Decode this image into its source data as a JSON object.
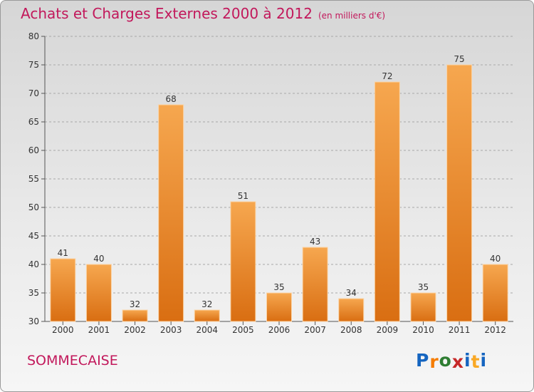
{
  "title": "Achats et Charges Externes 2000 à 2012",
  "subtitle": "(en milliers d'€)",
  "commune": "SOMMECAISE",
  "logo": {
    "text": "Proxiti",
    "colors": [
      "#1565c0",
      "#f57c00",
      "#2e7d32",
      "#c62828",
      "#1565c0",
      "#f9a825",
      "#1565c0"
    ]
  },
  "colors": {
    "bar_top": "#f6a74f",
    "bar_bottom": "#d96e12",
    "text_accent": "#c2185b",
    "grid": "#a8a8a8"
  },
  "chart_data": {
    "type": "bar",
    "categories": [
      "2000",
      "2001",
      "2002",
      "2003",
      "2004",
      "2005",
      "2006",
      "2007",
      "2008",
      "2009",
      "2010",
      "2011",
      "2012"
    ],
    "values": [
      41,
      40,
      32,
      68,
      32,
      51,
      35,
      43,
      34,
      72,
      35,
      75,
      40
    ],
    "ylim": [
      30,
      80
    ],
    "yticks": [
      30,
      35,
      40,
      45,
      50,
      55,
      60,
      65,
      70,
      75,
      80
    ],
    "grid": "horizontal dashed"
  }
}
